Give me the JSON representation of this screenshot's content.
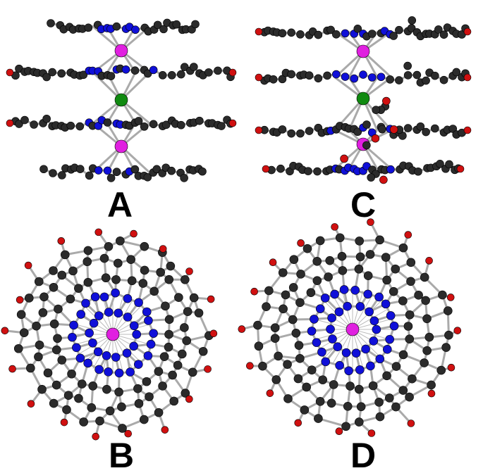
{
  "panels": [
    {
      "label": "A"
    },
    {
      "label": "C"
    },
    {
      "label": "B"
    },
    {
      "label": "D"
    }
  ]
}
